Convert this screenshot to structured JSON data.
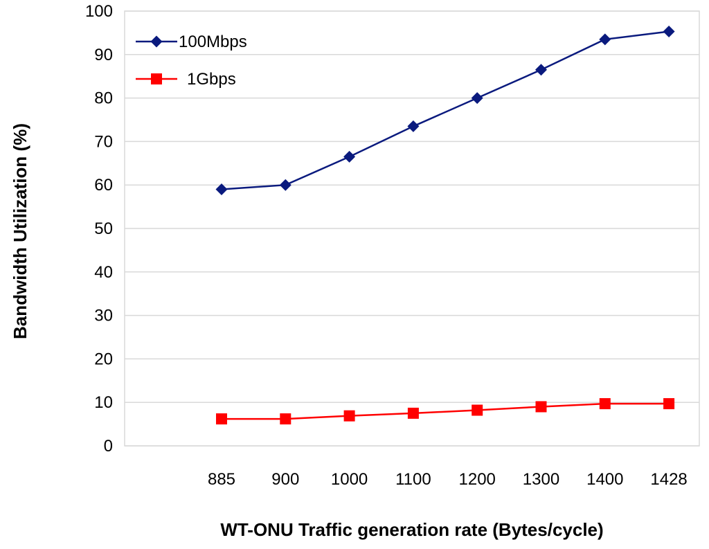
{
  "chart_data": {
    "type": "line",
    "title": "",
    "xlabel": "WT-ONU Traffic generation rate (Bytes/cycle)",
    "ylabel": "Bandwidth Utilization (%)",
    "categories": [
      "885",
      "900",
      "1000",
      "1100",
      "1200",
      "1300",
      "1400",
      "1428"
    ],
    "ylim": [
      0,
      100
    ],
    "yticks": [
      0,
      10,
      20,
      30,
      40,
      50,
      60,
      70,
      80,
      90,
      100
    ],
    "yticks_labels": [
      "0",
      "10",
      "20",
      "30",
      "40",
      "50",
      "60",
      "70",
      "80",
      "90",
      "100"
    ],
    "grid": true,
    "legend_position": "top-left",
    "series": [
      {
        "name": "100Mbps",
        "color": "#0a1a7e",
        "marker": "diamond",
        "values": [
          59,
          60,
          66.5,
          73.5,
          80,
          86.5,
          93.5,
          95.3
        ]
      },
      {
        "name": "1Gbps",
        "color": "#ff0000",
        "marker": "square",
        "values": [
          6.2,
          6.2,
          6.9,
          7.5,
          8.2,
          9.0,
          9.7,
          9.7
        ]
      }
    ]
  }
}
